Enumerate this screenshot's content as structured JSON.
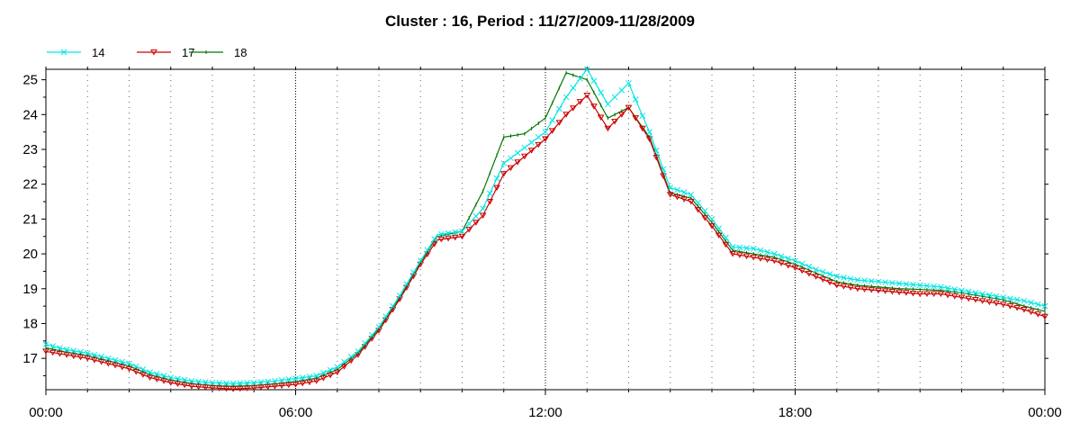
{
  "chart_data": {
    "type": "line",
    "title": "Cluster : 16, Period : 11/27/2009-11/28/2009",
    "xlabel": "",
    "ylabel": "",
    "x_ticks": [
      "00:00",
      "06:00",
      "12:00",
      "18:00",
      "00:00"
    ],
    "x_tick_hours": [
      0,
      6,
      12,
      18,
      24
    ],
    "xlim_hours": [
      0,
      24
    ],
    "y_ticks": [
      17,
      18,
      19,
      20,
      21,
      22,
      23,
      24,
      25
    ],
    "ylim": [
      16.1,
      25.3
    ],
    "grid": "vertical dotted lines at every hour, denser at 6-hour ticks",
    "legend_position": "top-left",
    "series": [
      {
        "name": "14",
        "color": "#00e5e5",
        "marker": "x",
        "points": [
          [
            0,
            17.4
          ],
          [
            0.5,
            17.25
          ],
          [
            1,
            17.15
          ],
          [
            1.5,
            17.0
          ],
          [
            2,
            16.85
          ],
          [
            2.5,
            16.6
          ],
          [
            3,
            16.45
          ],
          [
            3.5,
            16.35
          ],
          [
            4,
            16.3
          ],
          [
            4.5,
            16.28
          ],
          [
            5,
            16.3
          ],
          [
            5.5,
            16.35
          ],
          [
            6,
            16.42
          ],
          [
            6.5,
            16.5
          ],
          [
            7,
            16.75
          ],
          [
            7.5,
            17.2
          ],
          [
            8,
            17.9
          ],
          [
            8.5,
            18.8
          ],
          [
            9,
            19.8
          ],
          [
            9.4,
            20.55
          ],
          [
            10,
            20.65
          ],
          [
            10.5,
            21.3
          ],
          [
            11,
            22.6
          ],
          [
            11.5,
            23.05
          ],
          [
            12,
            23.5
          ],
          [
            12.5,
            24.5
          ],
          [
            13,
            25.3
          ],
          [
            13.5,
            24.3
          ],
          [
            14,
            24.9
          ],
          [
            14.5,
            23.5
          ],
          [
            15,
            21.9
          ],
          [
            15.5,
            21.7
          ],
          [
            16,
            21.0
          ],
          [
            16.5,
            20.2
          ],
          [
            17,
            20.15
          ],
          [
            17.5,
            20.0
          ],
          [
            18,
            19.8
          ],
          [
            18.5,
            19.55
          ],
          [
            19,
            19.35
          ],
          [
            19.5,
            19.25
          ],
          [
            20,
            19.2
          ],
          [
            20.5,
            19.15
          ],
          [
            21,
            19.1
          ],
          [
            21.5,
            19.05
          ],
          [
            22,
            18.95
          ],
          [
            22.5,
            18.85
          ],
          [
            23,
            18.75
          ],
          [
            23.5,
            18.65
          ],
          [
            24,
            18.5
          ]
        ]
      },
      {
        "name": "17",
        "color": "#cc0000",
        "marker": "triangle-down",
        "points": [
          [
            0,
            17.2
          ],
          [
            0.5,
            17.1
          ],
          [
            1,
            17.0
          ],
          [
            1.5,
            16.85
          ],
          [
            2,
            16.7
          ],
          [
            2.5,
            16.45
          ],
          [
            3,
            16.3
          ],
          [
            3.5,
            16.2
          ],
          [
            4,
            16.15
          ],
          [
            4.5,
            16.12
          ],
          [
            5,
            16.15
          ],
          [
            5.5,
            16.2
          ],
          [
            6,
            16.25
          ],
          [
            6.5,
            16.35
          ],
          [
            7,
            16.6
          ],
          [
            7.5,
            17.1
          ],
          [
            8,
            17.8
          ],
          [
            8.5,
            18.7
          ],
          [
            9,
            19.7
          ],
          [
            9.4,
            20.4
          ],
          [
            10,
            20.5
          ],
          [
            10.5,
            21.1
          ],
          [
            11,
            22.3
          ],
          [
            11.5,
            22.8
          ],
          [
            12,
            23.3
          ],
          [
            12.5,
            24.0
          ],
          [
            13,
            24.55
          ],
          [
            13.5,
            23.6
          ],
          [
            14,
            24.2
          ],
          [
            14.5,
            23.3
          ],
          [
            15,
            21.7
          ],
          [
            15.5,
            21.5
          ],
          [
            16,
            20.8
          ],
          [
            16.5,
            20.0
          ],
          [
            17,
            19.9
          ],
          [
            17.5,
            19.8
          ],
          [
            18,
            19.6
          ],
          [
            18.5,
            19.35
          ],
          [
            19,
            19.1
          ],
          [
            19.5,
            19.0
          ],
          [
            20,
            18.95
          ],
          [
            20.5,
            18.9
          ],
          [
            21,
            18.85
          ],
          [
            21.5,
            18.85
          ],
          [
            22,
            18.75
          ],
          [
            22.5,
            18.65
          ],
          [
            23,
            18.55
          ],
          [
            23.5,
            18.4
          ],
          [
            24,
            18.2
          ]
        ]
      },
      {
        "name": "18",
        "color": "#007700",
        "marker": "tick",
        "points": [
          [
            0,
            17.3
          ],
          [
            0.5,
            17.18
          ],
          [
            1,
            17.08
          ],
          [
            1.5,
            16.93
          ],
          [
            2,
            16.78
          ],
          [
            2.5,
            16.53
          ],
          [
            3,
            16.38
          ],
          [
            3.5,
            16.28
          ],
          [
            4,
            16.22
          ],
          [
            4.5,
            16.2
          ],
          [
            5,
            16.22
          ],
          [
            5.5,
            16.27
          ],
          [
            6,
            16.33
          ],
          [
            6.5,
            16.43
          ],
          [
            7,
            16.68
          ],
          [
            7.5,
            17.15
          ],
          [
            8,
            17.85
          ],
          [
            8.5,
            18.75
          ],
          [
            9,
            19.75
          ],
          [
            9.4,
            20.5
          ],
          [
            10,
            20.65
          ],
          [
            10.5,
            21.8
          ],
          [
            11,
            23.35
          ],
          [
            11.5,
            23.45
          ],
          [
            12,
            23.9
          ],
          [
            12.5,
            25.2
          ],
          [
            13,
            25.0
          ],
          [
            13.5,
            23.9
          ],
          [
            14,
            24.2
          ],
          [
            14.5,
            23.35
          ],
          [
            15,
            21.75
          ],
          [
            15.5,
            21.6
          ],
          [
            16,
            20.9
          ],
          [
            16.5,
            20.1
          ],
          [
            17,
            20.0
          ],
          [
            17.5,
            19.9
          ],
          [
            18,
            19.7
          ],
          [
            18.5,
            19.45
          ],
          [
            19,
            19.2
          ],
          [
            19.5,
            19.1
          ],
          [
            20,
            19.05
          ],
          [
            20.5,
            19.0
          ],
          [
            21,
            18.98
          ],
          [
            21.5,
            18.95
          ],
          [
            22,
            18.88
          ],
          [
            22.5,
            18.78
          ],
          [
            23,
            18.68
          ],
          [
            23.5,
            18.5
          ],
          [
            24,
            18.35
          ]
        ]
      }
    ]
  }
}
